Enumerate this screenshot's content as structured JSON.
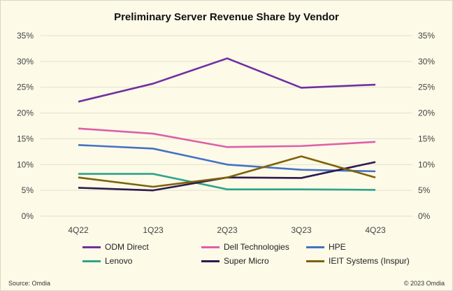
{
  "chart_data": {
    "type": "line",
    "title": "Preliminary Server Revenue Share by Vendor",
    "categories": [
      "4Q22",
      "1Q23",
      "2Q23",
      "3Q23",
      "4Q23"
    ],
    "ylim": [
      0,
      35
    ],
    "yticks": [
      "0%",
      "5%",
      "10%",
      "15%",
      "20%",
      "25%",
      "30%",
      "35%"
    ],
    "y_axis_both_sides": true,
    "grid": true,
    "legend_position": "bottom",
    "series": [
      {
        "name": "ODM Direct",
        "color": "#7030a0",
        "values": [
          22.2,
          25.7,
          30.6,
          24.9,
          25.5
        ]
      },
      {
        "name": "Dell Technologies",
        "color": "#de5fa8",
        "values": [
          17.0,
          16.0,
          13.4,
          13.6,
          14.4
        ]
      },
      {
        "name": "HPE",
        "color": "#4472c4",
        "values": [
          13.8,
          13.1,
          10.0,
          9.0,
          8.7
        ]
      },
      {
        "name": "Lenovo",
        "color": "#2ea48a",
        "values": [
          8.2,
          8.2,
          5.2,
          5.2,
          5.1
        ]
      },
      {
        "name": "Super Micro",
        "color": "#2b1a4d",
        "values": [
          5.5,
          5.0,
          7.5,
          7.4,
          10.5
        ]
      },
      {
        "name": "IEIT Systems (Inspur)",
        "color": "#7f6209",
        "values": [
          7.5,
          5.7,
          7.5,
          11.6,
          7.5
        ]
      }
    ]
  },
  "footer": {
    "source": "Source: Omdia",
    "copyright": "© 2023 Omdia"
  }
}
